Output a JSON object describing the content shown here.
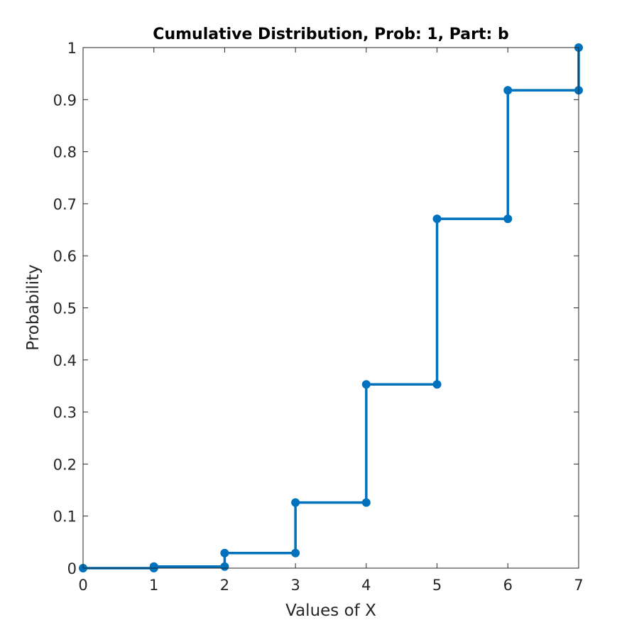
{
  "chart_data": {
    "type": "line",
    "subtype": "stairs-with-markers",
    "title": "Cumulative Distribution, Prob: 1, Part: b",
    "xlabel": "Values of X",
    "ylabel": "Probability",
    "xlim": [
      0,
      7
    ],
    "ylim": [
      0,
      1
    ],
    "xticks": [
      "0",
      "1",
      "2",
      "3",
      "4",
      "5",
      "6",
      "7"
    ],
    "yticks": [
      "0",
      "0.1",
      "0.2",
      "0.3",
      "0.4",
      "0.5",
      "0.6",
      "0.7",
      "0.8",
      "0.9",
      "1"
    ],
    "grid": false,
    "legend": "none",
    "series": [
      {
        "x": [
          0,
          1,
          2,
          3,
          4,
          5,
          6,
          7
        ],
        "values": [
          0.0,
          0.003,
          0.029,
          0.126,
          0.353,
          0.671,
          0.918,
          1.0
        ]
      }
    ]
  },
  "colors": {
    "series": "#0072BD",
    "axis": "#262626",
    "background": "#ffffff"
  }
}
